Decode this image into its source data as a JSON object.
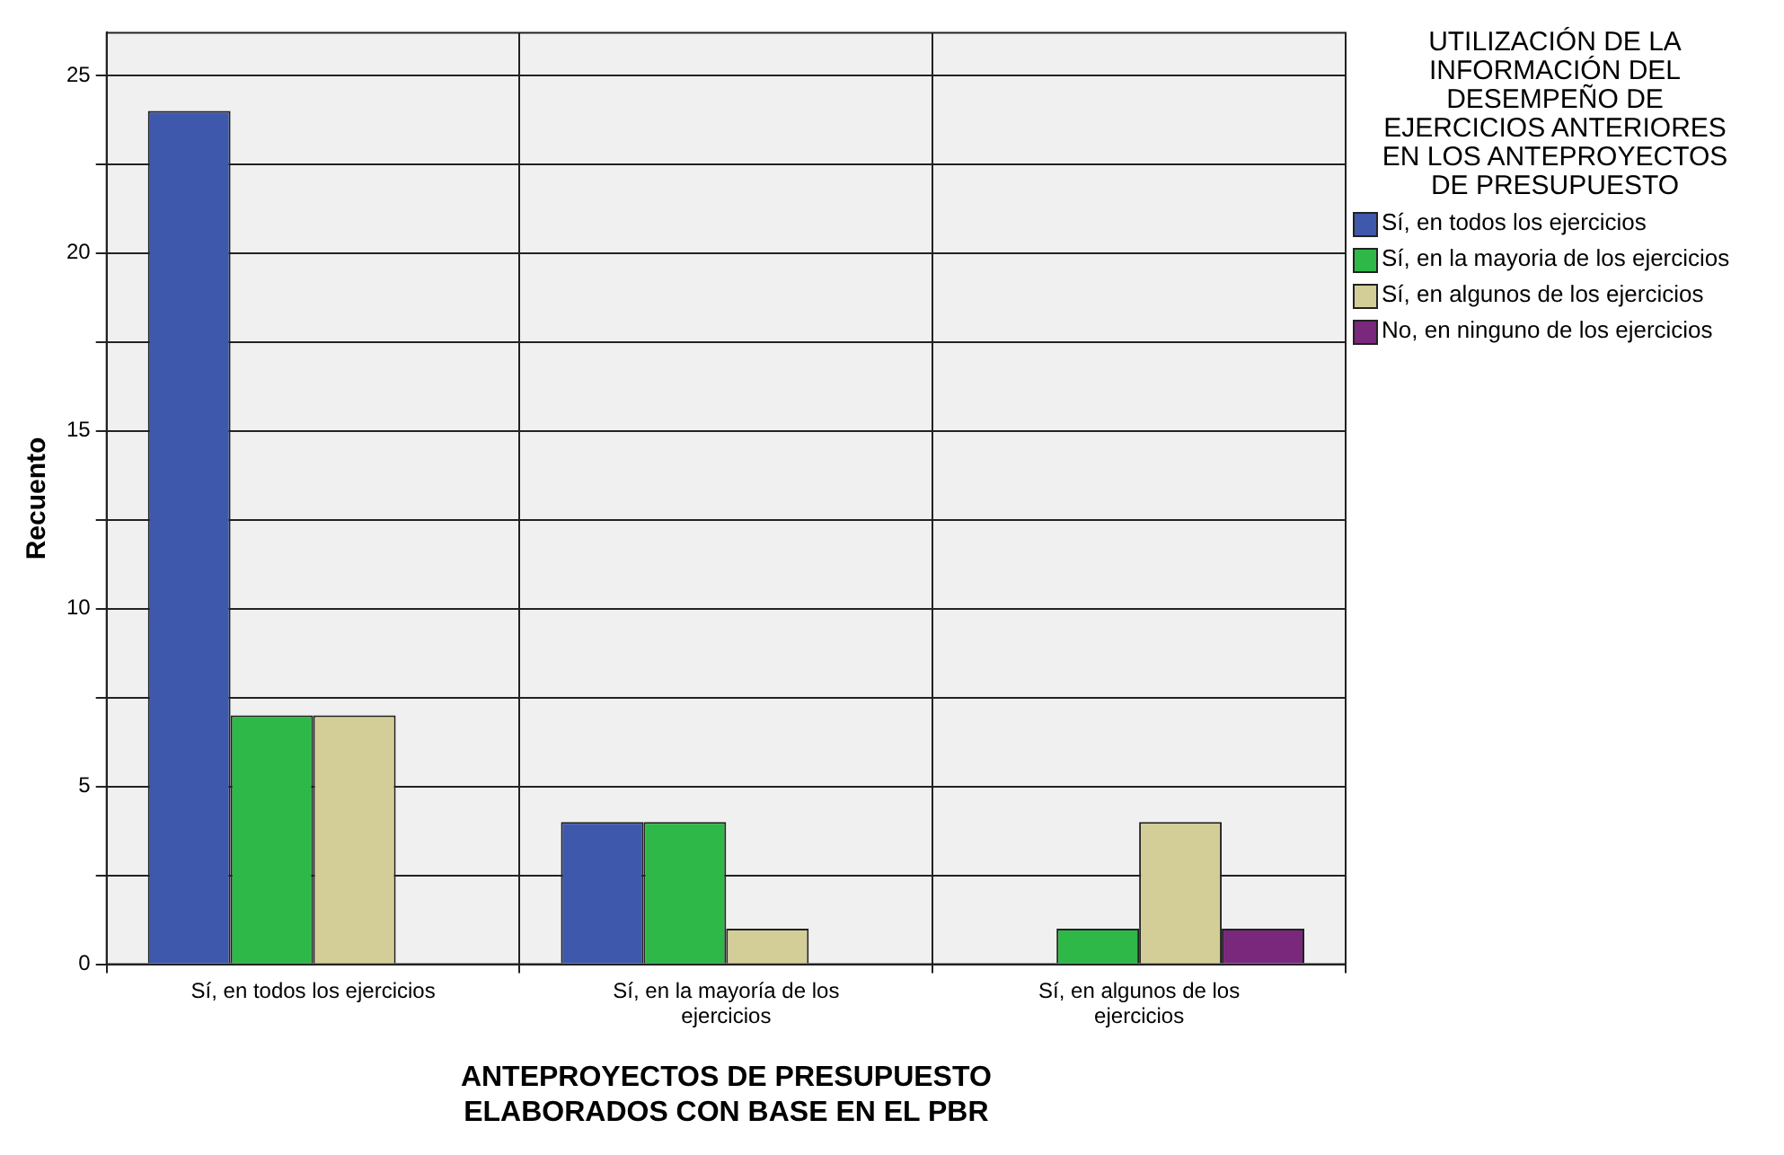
{
  "chart_data": {
    "type": "bar",
    "xlabel": "ANTEPROYECTOS DE PRESUPUESTO ELABORADOS CON BASE EN EL PBR",
    "ylabel": "Recuento",
    "legend_title": "UTILIZACIÓN DE LA INFORMACIÓN DEL DESEMPEÑO DE EJERCICIOS ANTERIORES EN LOS ANTEPROYECTOS DE PRESUPUESTO",
    "categories": [
      "Sí, en todos los ejercicios",
      "Sí, en la mayoría de los ejercicios",
      "Sí, en algunos de los ejercicios"
    ],
    "series": [
      {
        "name": "Sí, en todos los ejercicios",
        "color": "#3e58ac",
        "values": [
          24,
          4,
          0
        ]
      },
      {
        "name": "Sí, en la mayoria de los ejercicios",
        "color": "#2eb848",
        "values": [
          7,
          4,
          1
        ]
      },
      {
        "name": "Sí, en algunos de los ejercicios",
        "color": "#d3ce97",
        "values": [
          7,
          1,
          4
        ]
      },
      {
        "name": "No, en ninguno de los ejercicios",
        "color": "#79287c",
        "values": [
          0,
          0,
          1
        ]
      }
    ],
    "ylim": [
      0,
      26.2
    ],
    "yticks": [
      0,
      {
        "value": 2.5,
        "label": null
      },
      5,
      {
        "value": 7.5,
        "label": null
      },
      10,
      {
        "value": 12.5,
        "label": null
      },
      15,
      {
        "value": 17.5,
        "label": null
      },
      20,
      {
        "value": 22.5,
        "label": null
      },
      25
    ],
    "grid": true,
    "legend": "right"
  }
}
